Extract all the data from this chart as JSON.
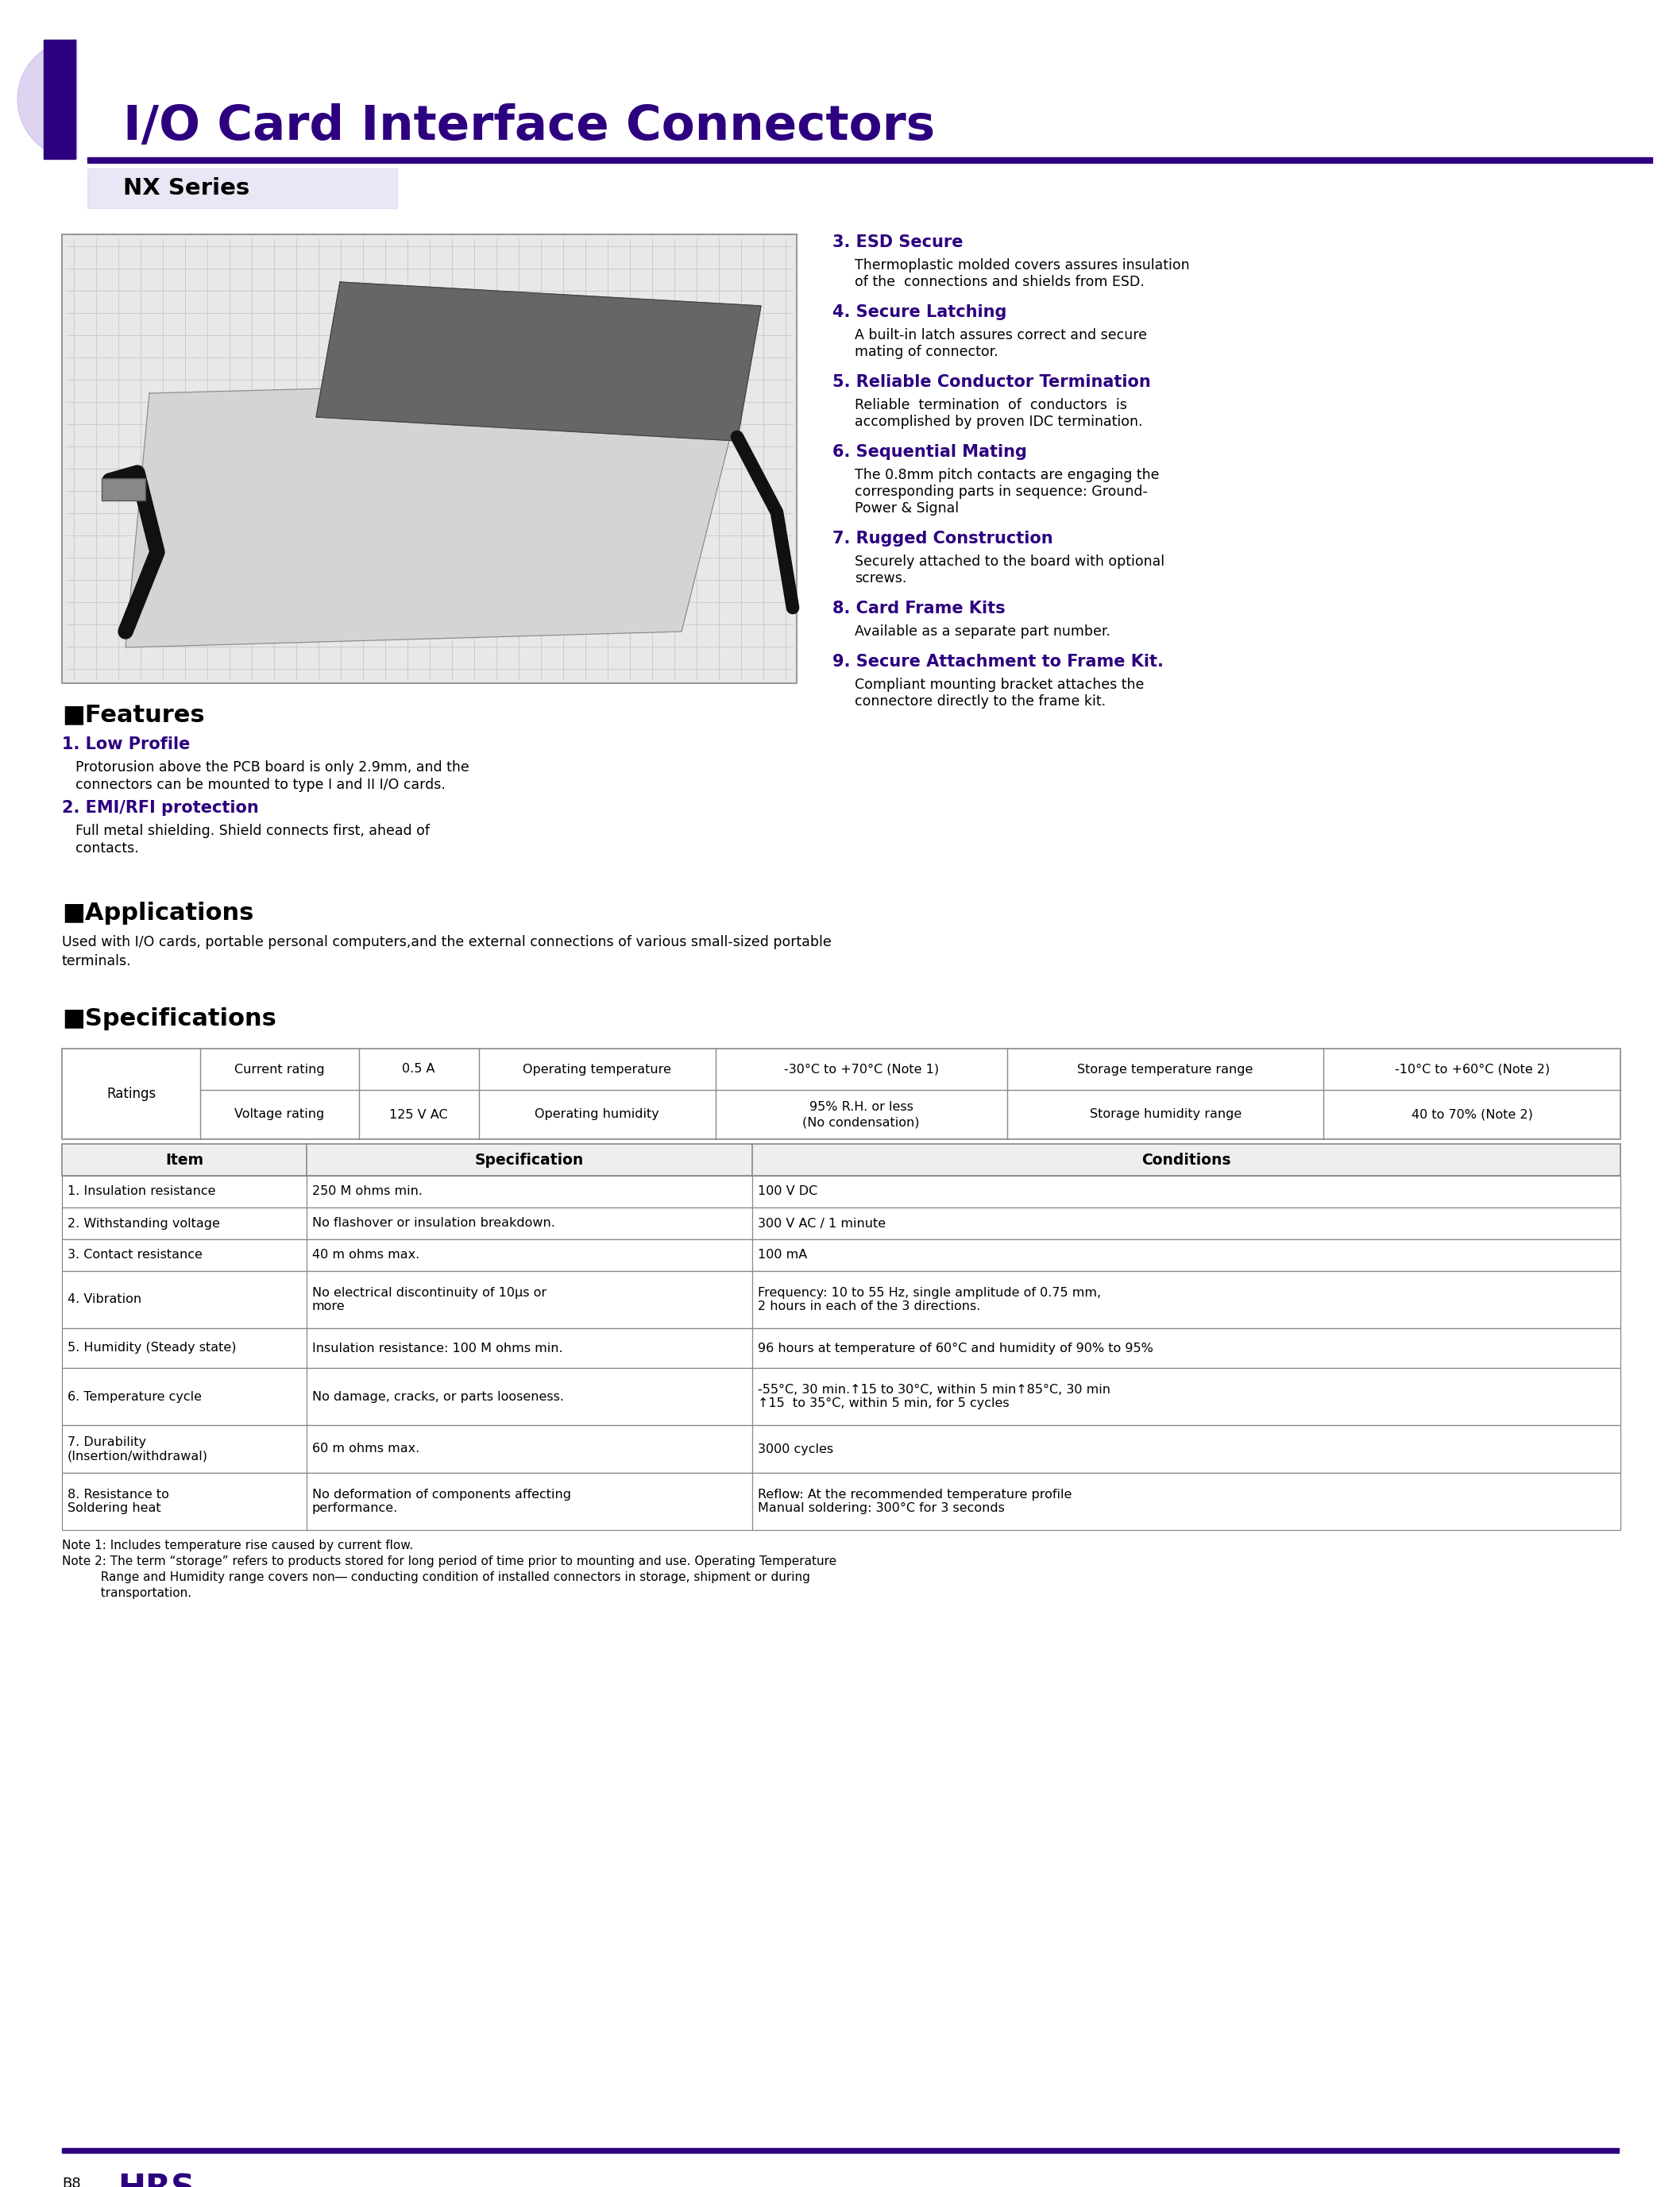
{
  "title": "I/O Card Interface Connectors",
  "series": "NX Series",
  "purple_dark": "#2d007f",
  "purple_light": "#c8b8e8",
  "black": "#000000",
  "white": "#ffffff",
  "features_left": [
    {
      "num": "1.",
      "title": "Low Profile",
      "bold": true,
      "body": "Protorusion above the PCB board is only 2.9mm, and the\nconnectors can be mounted to type I and II I/O cards."
    },
    {
      "num": "2.",
      "title": "EMI/RFI protection",
      "bold": true,
      "body": "Full metal shielding. Shield connects first, ahead of\ncontacts."
    }
  ],
  "features_right": [
    {
      "num": "3.",
      "title": "ESD Secure",
      "body": "Thermoplastic molded covers assures insulation\nof the  connections and shields from ESD."
    },
    {
      "num": "4.",
      "title": "Secure Latching",
      "body": "A built-in latch assures correct and secure\nmating of connector."
    },
    {
      "num": "5.",
      "title": "Reliable Conductor Termination",
      "body": "Reliable  termination  of  conductors  is\naccomplished by proven IDC termination."
    },
    {
      "num": "6.",
      "title": "Sequential Mating",
      "body": "The 0.8mm pitch contacts are engaging the\ncorresponding parts in sequence: Ground-\nPower & Signal"
    },
    {
      "num": "7.",
      "title": "Rugged Construction",
      "body": "Securely attached to the board with optional\nscrews."
    },
    {
      "num": "8.",
      "title": "Card Frame Kits",
      "body": "Available as a separate part number."
    },
    {
      "num": "9.",
      "title": "Secure Attachment to Frame Kit.",
      "body": "Compliant mounting bracket attaches the\nconnectore directly to the frame kit."
    }
  ],
  "applications_body": "Used with I/O cards, portable personal computers,and the external connections of various small-sized portable\nterminals.",
  "ratings_row1": [
    "Current rating",
    "0.5 A",
    "Operating temperature",
    "-30°C to +70°C (Note 1)",
    "Storage temperature range",
    "-10°C to +60°C (Note 2)"
  ],
  "ratings_row2": [
    "Voltage rating",
    "125 V AC",
    "Operating humidity",
    "95% R.H. or less\n(No condensation)",
    "Storage humidity range",
    "40 to 70% (Note 2)"
  ],
  "specs_headers": [
    "Item",
    "Specification",
    "Conditions"
  ],
  "specs_rows": [
    [
      "1. Insulation resistance",
      "250 M ohms min.",
      "100 V DC"
    ],
    [
      "2. Withstanding voltage",
      "No flashover or insulation breakdown.",
      "300 V AC / 1 minute"
    ],
    [
      "3. Contact resistance",
      "40 m ohms max.",
      "100 mA"
    ],
    [
      "4. Vibration",
      "No electrical discontinuity of 10μs or\nmore",
      "Frequency: 10 to 55 Hz, single amplitude of 0.75 mm,\n2 hours in each of the 3 directions."
    ],
    [
      "5. Humidity (Steady state)",
      "Insulation resistance: 100 M ohms min.",
      "96 hours at temperature of 60°C and humidity of 90% to 95%"
    ],
    [
      "6. Temperature cycle",
      "No damage, cracks, or parts looseness.",
      "-55°C, 30 min.↑15 to 30°C, within 5 min↑85°C, 30 min\n↑15  to 35°C, within 5 min, for 5 cycles"
    ],
    [
      "7. Durability\n(Insertion/withdrawal)",
      "60 m ohms max.",
      "3000 cycles"
    ],
    [
      "8. Resistance to\nSoldering heat",
      "No deformation of components affecting\nperformance.",
      "Reflow: At the recommended temperature profile\nManual soldering: 300°C for 3 seconds"
    ]
  ],
  "notes": [
    "Note 1: Includes temperature rise caused by current flow.",
    "Note 2: The term “storage” refers to products stored for long period of time prior to mounting and use. Operating Temperature",
    "          Range and Humidity range covers non― conducting condition of installed connectors in storage, shipment or during",
    "          transportation."
  ],
  "page_label": "B8",
  "features_section": "■Features",
  "applications_section": "■Applications",
  "specifications_section": "■Specifications"
}
